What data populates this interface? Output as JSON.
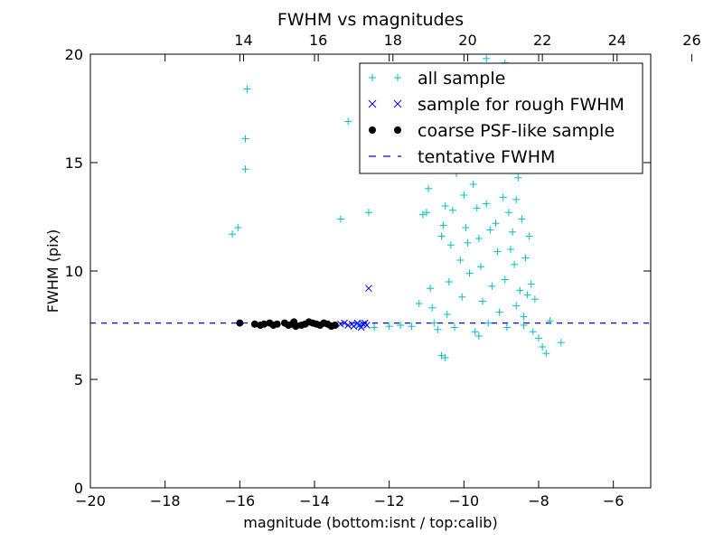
{
  "chart_data": {
    "type": "scatter",
    "title": "FWHM vs magnitudes",
    "xlabel": "magnitude (bottom:isnt / top:calib)",
    "ylabel": "FWHM (pix)",
    "xlim": [
      -20,
      -5
    ],
    "ylim": [
      0,
      20
    ],
    "x_ticks": [
      -20,
      -18,
      -16,
      -14,
      -12,
      -10,
      -8,
      -6
    ],
    "x_tick_labels": [
      "−20",
      "−18",
      "−16",
      "−14",
      "−12",
      "−10",
      "−8",
      "−6"
    ],
    "y_ticks": [
      0,
      5,
      10,
      15,
      20
    ],
    "y_tick_labels": [
      "0",
      "5",
      "10",
      "15",
      "20"
    ],
    "top_axis": {
      "ticks": [
        14,
        16,
        18,
        20,
        22,
        24,
        26
      ],
      "tick_labels": [
        "14",
        "16",
        "18",
        "20",
        "22",
        "24",
        "26"
      ],
      "offset": 29.9
    },
    "grid": false,
    "legend_position": "top-right",
    "colors": {
      "all_sample": "#00bfbf",
      "rough": "#0000ff",
      "coarse": "#000000",
      "tentative": "#0000ff"
    },
    "series": [
      {
        "name": "all sample",
        "marker": "+",
        "points": [
          [
            -16.2,
            11.7
          ],
          [
            -16.05,
            12.0
          ],
          [
            -15.85,
            16.1
          ],
          [
            -15.8,
            18.4
          ],
          [
            -15.85,
            14.7
          ],
          [
            -13.3,
            12.4
          ],
          [
            -13.1,
            16.9
          ],
          [
            -12.55,
            12.7
          ],
          [
            -12.8,
            7.5
          ],
          [
            -12.4,
            7.4
          ],
          [
            -12.0,
            7.45
          ],
          [
            -11.7,
            7.5
          ],
          [
            -11.4,
            7.45
          ],
          [
            -11.2,
            8.5
          ],
          [
            -11.1,
            12.6
          ],
          [
            -11.0,
            12.7
          ],
          [
            -10.95,
            13.8
          ],
          [
            -10.9,
            9.2
          ],
          [
            -10.85,
            8.3
          ],
          [
            -10.8,
            7.6
          ],
          [
            -10.7,
            7.3
          ],
          [
            -10.6,
            11.6
          ],
          [
            -10.55,
            12.1
          ],
          [
            -10.5,
            13.0
          ],
          [
            -10.5,
            6.0
          ],
          [
            -10.45,
            8.0
          ],
          [
            -10.4,
            9.5
          ],
          [
            -10.35,
            11.2
          ],
          [
            -10.3,
            12.8
          ],
          [
            -10.25,
            7.4
          ],
          [
            -10.2,
            14.5
          ],
          [
            -10.15,
            15.5
          ],
          [
            -10.1,
            10.5
          ],
          [
            -10.05,
            8.8
          ],
          [
            -10.0,
            13.5
          ],
          [
            -9.95,
            12.0
          ],
          [
            -9.9,
            11.3
          ],
          [
            -9.85,
            9.9
          ],
          [
            -9.8,
            16.5
          ],
          [
            -9.75,
            14.0
          ],
          [
            -9.7,
            7.2
          ],
          [
            -9.65,
            12.9
          ],
          [
            -9.6,
            11.5
          ],
          [
            -9.55,
            10.2
          ],
          [
            -9.5,
            8.6
          ],
          [
            -9.45,
            17.5
          ],
          [
            -9.4,
            13.1
          ],
          [
            -9.35,
            7.6
          ],
          [
            -9.3,
            11.9
          ],
          [
            -9.25,
            9.3
          ],
          [
            -9.2,
            14.8
          ],
          [
            -9.15,
            12.2
          ],
          [
            -9.1,
            10.9
          ],
          [
            -9.05,
            8.1
          ],
          [
            -9.0,
            16.0
          ],
          [
            -8.95,
            13.4
          ],
          [
            -8.9,
            9.6
          ],
          [
            -8.85,
            7.4
          ],
          [
            -8.8,
            12.7
          ],
          [
            -8.75,
            11.0
          ],
          [
            -8.7,
            19.4
          ],
          [
            -8.65,
            10.3
          ],
          [
            -8.6,
            8.4
          ],
          [
            -8.55,
            14.3
          ],
          [
            -8.5,
            9.1
          ],
          [
            -8.45,
            12.4
          ],
          [
            -8.4,
            7.9
          ],
          [
            -8.35,
            10.6
          ],
          [
            -8.3,
            8.9
          ],
          [
            -8.25,
            11.6
          ],
          [
            -8.2,
            9.4
          ],
          [
            -8.15,
            7.2
          ],
          [
            -8.1,
            8.7
          ],
          [
            -8.0,
            6.9
          ],
          [
            -7.9,
            6.5
          ],
          [
            -7.8,
            6.2
          ],
          [
            -7.7,
            7.7
          ],
          [
            -7.4,
            6.7
          ],
          [
            -9.3,
            17.0
          ],
          [
            -8.8,
            15.5
          ],
          [
            -8.6,
            13.3
          ],
          [
            -9.7,
            15.9
          ],
          [
            -10.3,
            16.6
          ],
          [
            -9.4,
            19.8
          ],
          [
            -8.9,
            19.6
          ],
          [
            -10.6,
            6.1
          ],
          [
            -9.6,
            7.0
          ],
          [
            -8.4,
            7.5
          ],
          [
            -8.7,
            11.8
          ]
        ]
      },
      {
        "name": "sample for rough FWHM",
        "marker": "x",
        "points": [
          [
            -13.3,
            7.55
          ],
          [
            -13.2,
            7.6
          ],
          [
            -13.1,
            7.5
          ],
          [
            -13.0,
            7.55
          ],
          [
            -12.95,
            7.45
          ],
          [
            -12.85,
            7.6
          ],
          [
            -12.8,
            7.5
          ],
          [
            -12.75,
            7.4
          ],
          [
            -12.7,
            7.55
          ],
          [
            -12.65,
            7.6
          ],
          [
            -12.6,
            7.5
          ],
          [
            -12.55,
            9.2
          ]
        ]
      },
      {
        "name": "coarse PSF-like sample",
        "marker": "o",
        "points": [
          [
            -16.0,
            7.6
          ],
          [
            -15.6,
            7.55
          ],
          [
            -15.45,
            7.5
          ],
          [
            -15.35,
            7.55
          ],
          [
            -15.2,
            7.6
          ],
          [
            -15.1,
            7.5
          ],
          [
            -15.0,
            7.55
          ],
          [
            -14.8,
            7.6
          ],
          [
            -14.7,
            7.5
          ],
          [
            -14.6,
            7.55
          ],
          [
            -14.55,
            7.65
          ],
          [
            -14.5,
            7.45
          ],
          [
            -14.35,
            7.5
          ],
          [
            -14.25,
            7.55
          ],
          [
            -14.15,
            7.65
          ],
          [
            -14.05,
            7.6
          ],
          [
            -13.95,
            7.55
          ],
          [
            -13.85,
            7.5
          ],
          [
            -13.75,
            7.6
          ],
          [
            -13.65,
            7.55
          ],
          [
            -13.55,
            7.45
          ],
          [
            -13.45,
            7.5
          ]
        ]
      },
      {
        "name": "tentative FWHM",
        "marker": "dashed-line",
        "y": 7.6
      }
    ]
  }
}
